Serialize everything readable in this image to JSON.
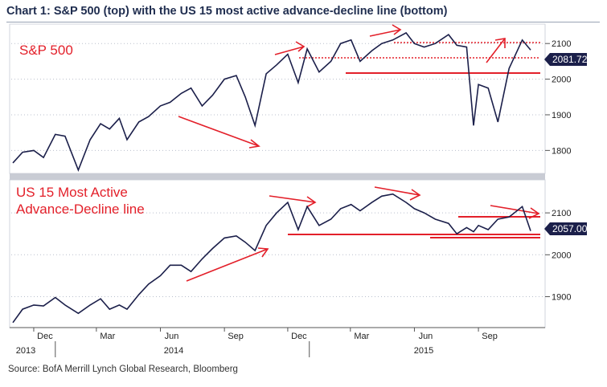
{
  "title": "Chart 1: S&P 500 (top) with the US 15 most active advance-decline line (bottom)",
  "source": "Source: BofA Merrill Lynch Global Research, Bloomberg",
  "colors": {
    "line": "#1b1f4a",
    "annotation": "#e3202a",
    "grid": "#b9bfcc"
  },
  "chart_data": [
    {
      "type": "line",
      "title": "",
      "annotation_text": "S&P 500",
      "ylim": [
        1740,
        2150
      ],
      "yticks": [
        "1800",
        "1900",
        "2000",
        "2100"
      ],
      "last_value_label": "2081.72",
      "x_labels": [
        "Dec",
        "Mar",
        "Jun",
        "Sep",
        "Dec",
        "Mar",
        "Jun",
        "Sep"
      ],
      "year_labels": [
        "2013",
        "2014",
        "2015"
      ],
      "series": [
        {
          "name": "",
          "x": [
            "2013-11-01",
            "2013-11-15",
            "2013-12-01",
            "2013-12-15",
            "2014-01-01",
            "2014-01-15",
            "2014-02-03",
            "2014-02-20",
            "2014-03-07",
            "2014-03-20",
            "2014-04-03",
            "2014-04-14",
            "2014-05-01",
            "2014-05-15",
            "2014-06-01",
            "2014-06-15",
            "2014-07-01",
            "2014-07-15",
            "2014-07-31",
            "2014-08-15",
            "2014-09-01",
            "2014-09-18",
            "2014-10-01",
            "2014-10-15",
            "2014-10-31",
            "2014-11-15",
            "2014-12-01",
            "2014-12-16",
            "2014-12-29",
            "2015-01-15",
            "2015-02-01",
            "2015-02-15",
            "2015-03-02",
            "2015-03-15",
            "2015-04-01",
            "2015-04-15",
            "2015-05-01",
            "2015-05-20",
            "2015-06-01",
            "2015-06-15",
            "2015-07-01",
            "2015-07-20",
            "2015-08-01",
            "2015-08-15",
            "2015-08-25",
            "2015-09-01",
            "2015-09-15",
            "2015-09-29",
            "2015-10-15",
            "2015-11-03",
            "2015-11-15"
          ],
          "values": [
            1765,
            1795,
            1800,
            1780,
            1845,
            1840,
            1745,
            1830,
            1875,
            1860,
            1890,
            1830,
            1880,
            1895,
            1925,
            1935,
            1960,
            1975,
            1925,
            1955,
            2000,
            2010,
            1950,
            1870,
            2015,
            2040,
            2070,
            1990,
            2085,
            2020,
            2050,
            2100,
            2110,
            2050,
            2080,
            2100,
            2110,
            2130,
            2100,
            2090,
            2100,
            2125,
            2095,
            2090,
            1870,
            1985,
            1975,
            1880,
            2030,
            2110,
            2081.72
          ]
        }
      ]
    },
    {
      "type": "line",
      "title": "",
      "annotation_text": [
        "US 15 Most Active",
        "Advance-Decline line"
      ],
      "ylim": [
        1830,
        2175
      ],
      "yticks": [
        "1900",
        "2000",
        "2100"
      ],
      "last_value_label": "2057.00",
      "series": [
        {
          "name": "",
          "x": [
            "2013-11-01",
            "2013-11-15",
            "2013-12-01",
            "2013-12-15",
            "2014-01-01",
            "2014-01-15",
            "2014-02-03",
            "2014-02-20",
            "2014-03-07",
            "2014-03-20",
            "2014-04-03",
            "2014-04-14",
            "2014-05-01",
            "2014-05-15",
            "2014-06-01",
            "2014-06-15",
            "2014-07-01",
            "2014-07-15",
            "2014-07-31",
            "2014-08-15",
            "2014-09-01",
            "2014-09-18",
            "2014-10-01",
            "2014-10-15",
            "2014-10-31",
            "2014-11-15",
            "2014-12-01",
            "2014-12-16",
            "2014-12-29",
            "2015-01-15",
            "2015-02-01",
            "2015-02-15",
            "2015-03-02",
            "2015-03-15",
            "2015-04-01",
            "2015-04-15",
            "2015-05-01",
            "2015-05-20",
            "2015-06-01",
            "2015-06-15",
            "2015-07-01",
            "2015-07-20",
            "2015-08-01",
            "2015-08-15",
            "2015-08-25",
            "2015-09-01",
            "2015-09-15",
            "2015-09-29",
            "2015-10-15",
            "2015-11-03",
            "2015-11-15"
          ],
          "values": [
            1838,
            1870,
            1880,
            1878,
            1898,
            1880,
            1860,
            1880,
            1895,
            1870,
            1880,
            1870,
            1905,
            1930,
            1950,
            1975,
            1975,
            1960,
            1990,
            2015,
            2040,
            2045,
            2030,
            2010,
            2070,
            2100,
            2125,
            2060,
            2115,
            2070,
            2085,
            2110,
            2120,
            2105,
            2125,
            2140,
            2145,
            2125,
            2110,
            2100,
            2085,
            2075,
            2050,
            2065,
            2055,
            2070,
            2060,
            2085,
            2090,
            2115,
            2057
          ]
        }
      ]
    }
  ]
}
